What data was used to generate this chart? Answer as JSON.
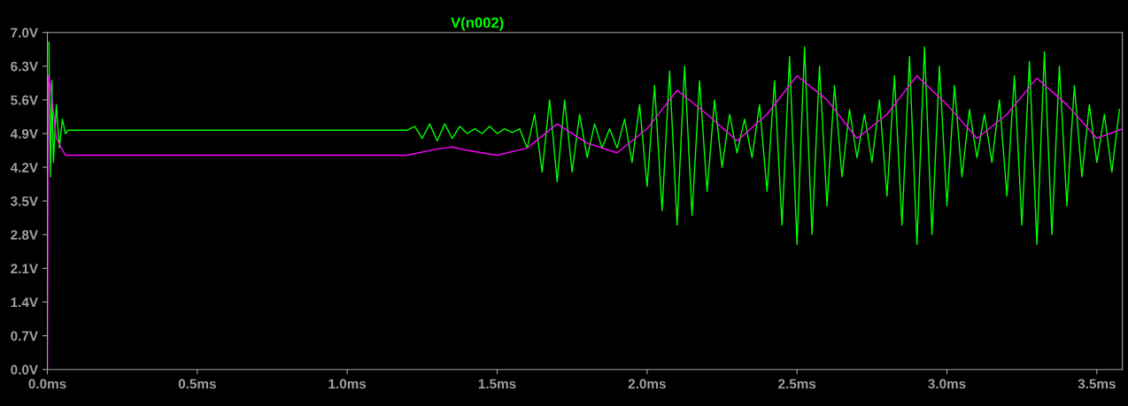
{
  "chart_data": {
    "type": "line",
    "xlim": [
      0,
      3.585
    ],
    "ylim": [
      0,
      7.0
    ],
    "xticks": [
      {
        "value": 0,
        "label": "0.0ms"
      },
      {
        "value": 0.5,
        "label": "0.5ms"
      },
      {
        "value": 1.0,
        "label": "1.0ms"
      },
      {
        "value": 1.5,
        "label": "1.5ms"
      },
      {
        "value": 2.0,
        "label": "2.0ms"
      },
      {
        "value": 2.5,
        "label": "2.5ms"
      },
      {
        "value": 3.0,
        "label": "3.0ms"
      },
      {
        "value": 3.5,
        "label": "3.5ms"
      }
    ],
    "yticks": [
      {
        "value": 0,
        "label": "0.0V"
      },
      {
        "value": 0.7,
        "label": "0.7V"
      },
      {
        "value": 1.4,
        "label": "1.4V"
      },
      {
        "value": 2.1,
        "label": "2.1V"
      },
      {
        "value": 2.8,
        "label": "2.8V"
      },
      {
        "value": 3.5,
        "label": "3.5V"
      },
      {
        "value": 4.2,
        "label": "4.2V"
      },
      {
        "value": 4.9,
        "label": "4.9V"
      },
      {
        "value": 5.6,
        "label": "5.6V"
      },
      {
        "value": 6.3,
        "label": "6.3V"
      },
      {
        "value": 7.0,
        "label": "7.0V"
      }
    ],
    "grid": false,
    "legend": "top",
    "marker": "none",
    "line_style": "solid",
    "series": [
      {
        "name": "V(n002)",
        "color": "#00ff00",
        "x": [
          0.005,
          0.01,
          0.015,
          0.02,
          0.03,
          0.04,
          0.05,
          0.06,
          0.07,
          1.2,
          1.225,
          1.25,
          1.275,
          1.3,
          1.325,
          1.35,
          1.375,
          1.4,
          1.425,
          1.45,
          1.475,
          1.5,
          1.525,
          1.55,
          1.575,
          1.6,
          1.625,
          1.65,
          1.675,
          1.7,
          1.725,
          1.75,
          1.775,
          1.8,
          1.825,
          1.85,
          1.875,
          1.9,
          1.925,
          1.95,
          1.975,
          2.0,
          2.025,
          2.05,
          2.075,
          2.1,
          2.125,
          2.15,
          2.175,
          2.2,
          2.225,
          2.25,
          2.275,
          2.3,
          2.325,
          2.35,
          2.375,
          2.4,
          2.425,
          2.45,
          2.475,
          2.5,
          2.525,
          2.55,
          2.575,
          2.6,
          2.625,
          2.65,
          2.675,
          2.7,
          2.725,
          2.75,
          2.775,
          2.8,
          2.825,
          2.85,
          2.875,
          2.9,
          2.925,
          2.95,
          2.975,
          3.0,
          3.025,
          3.05,
          3.075,
          3.1,
          3.125,
          3.15,
          3.175,
          3.2,
          3.225,
          3.25,
          3.275,
          3.3,
          3.325,
          3.35,
          3.375,
          3.4,
          3.425,
          3.45,
          3.475,
          3.5,
          3.525,
          3.55,
          3.575
        ],
        "values": [
          6.8,
          4.0,
          6.0,
          4.3,
          5.5,
          4.6,
          5.2,
          4.9,
          4.97,
          4.97,
          5.05,
          4.8,
          5.1,
          4.75,
          5.1,
          4.8,
          5.05,
          4.9,
          5.0,
          4.9,
          5.05,
          4.9,
          5.0,
          4.92,
          5.0,
          4.6,
          5.3,
          4.1,
          5.6,
          3.9,
          5.6,
          4.1,
          5.3,
          4.4,
          5.1,
          4.6,
          5.0,
          4.6,
          5.2,
          4.3,
          5.5,
          3.8,
          5.9,
          3.3,
          6.2,
          3.0,
          6.3,
          3.2,
          6.0,
          3.7,
          5.6,
          4.2,
          5.3,
          4.5,
          5.2,
          4.4,
          5.5,
          3.7,
          6.0,
          3.0,
          6.5,
          2.6,
          6.7,
          2.8,
          6.3,
          3.4,
          5.9,
          4.0,
          5.4,
          4.4,
          5.3,
          4.3,
          5.6,
          3.6,
          6.1,
          3.0,
          6.5,
          2.6,
          6.7,
          2.8,
          6.3,
          3.4,
          5.9,
          4.0,
          5.4,
          4.4,
          5.3,
          4.3,
          5.6,
          3.6,
          6.1,
          3.0,
          6.4,
          2.6,
          6.6,
          2.8,
          6.3,
          3.4,
          5.9,
          4.0,
          5.5,
          4.3,
          5.3,
          4.1,
          5.4
        ]
      },
      {
        "color": "#ff00ff",
        "x": [
          0,
          0.003,
          0.01,
          0.03,
          0.06,
          1.2,
          1.3,
          1.35,
          1.4,
          1.5,
          1.6,
          1.7,
          1.8,
          1.9,
          2.0,
          2.1,
          2.2,
          2.3,
          2.4,
          2.5,
          2.6,
          2.7,
          2.8,
          2.9,
          3.0,
          3.1,
          3.2,
          3.3,
          3.4,
          3.5,
          3.585
        ],
        "values": [
          0,
          6.1,
          5.9,
          4.8,
          4.45,
          4.45,
          4.58,
          4.62,
          4.55,
          4.45,
          4.6,
          5.1,
          4.7,
          4.5,
          5.0,
          5.8,
          5.3,
          4.75,
          5.3,
          6.1,
          5.6,
          4.8,
          5.3,
          6.1,
          5.5,
          4.8,
          5.3,
          6.05,
          5.5,
          4.8,
          5.0
        ]
      }
    ]
  }
}
